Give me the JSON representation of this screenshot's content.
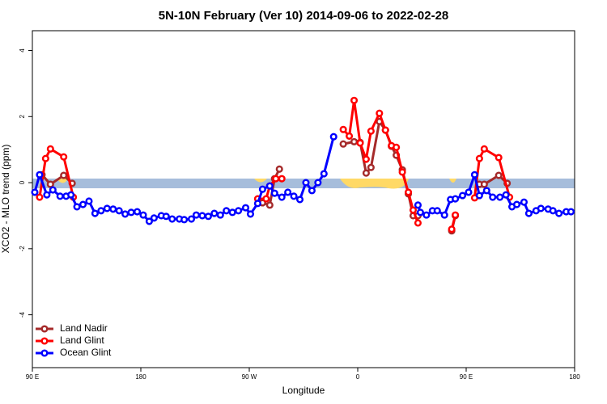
{
  "chart_data": {
    "type": "line",
    "title": "5N-10N February (Ver 10)   2014-09-06 to 2022-02-28",
    "x_label": "Longitude",
    "y_label": "XCO2 - MLO trend (ppm)",
    "xlim": [
      90,
      540
    ],
    "xticks": [
      {
        "value": 90,
        "label": "90 E"
      },
      {
        "value": 180,
        "label": "180"
      },
      {
        "value": 270,
        "label": "90 W"
      },
      {
        "value": 360,
        "label": "0"
      },
      {
        "value": 450,
        "label": "90 E"
      },
      {
        "value": 540,
        "label": "180"
      }
    ],
    "ylim": [
      -5.6,
      4.6
    ],
    "yticks": [
      -4,
      -2,
      0,
      2,
      4
    ],
    "legend": "bottom-left",
    "series": [
      {
        "name": "Land Nadir",
        "color": "#a52a2a",
        "x": [
          98,
          105,
          116,
          123,
          null,
          281,
          287,
          291,
          295,
          null,
          348,
          357,
          362,
          367,
          371,
          378,
          383,
          388,
          392,
          397,
          402,
          406,
          410,
          null,
          438,
          441,
          null,
          461,
          465,
          477,
          484
        ],
        "values": [
          0.24,
          -0.05,
          0.22,
          -0.02,
          null,
          -0.61,
          -0.68,
          0.12,
          0.41,
          null,
          1.17,
          1.24,
          1.22,
          0.29,
          0.46,
          1.85,
          1.59,
          1.1,
          0.83,
          0.39,
          -0.34,
          -1.0,
          -1.0,
          null,
          -1.46,
          -1.0,
          null,
          -0.05,
          -0.05,
          0.22,
          -0.02
        ]
      },
      {
        "name": "Land Glint",
        "color": "#ff0000",
        "x": [
          96,
          101,
          105,
          116,
          124,
          null,
          277,
          284,
          287,
          292,
          297,
          null,
          348,
          353,
          357,
          362,
          367,
          371,
          378,
          383,
          388,
          392,
          397,
          402,
          406,
          410,
          null,
          438,
          441,
          null,
          457,
          461,
          465,
          477,
          486
        ],
        "values": [
          -0.44,
          0.73,
          1.02,
          0.78,
          -0.44,
          null,
          -0.49,
          -0.49,
          -0.1,
          0.12,
          0.12,
          null,
          1.61,
          1.41,
          2.49,
          1.2,
          0.71,
          1.56,
          2.1,
          1.59,
          1.12,
          1.07,
          0.32,
          -0.29,
          -0.83,
          -1.22,
          null,
          -1.41,
          -0.98,
          null,
          -0.46,
          0.73,
          1.02,
          0.76,
          -0.44
        ]
      },
      {
        "name": "Ocean Glint",
        "color": "#0000ff",
        "x": [
          92,
          96,
          102,
          107,
          113,
          118,
          122,
          127,
          132,
          137,
          142,
          147,
          152,
          157,
          162,
          167,
          172,
          177,
          182,
          187,
          191,
          197,
          201,
          206,
          212,
          216,
          222,
          226,
          231,
          236,
          241,
          246,
          251,
          256,
          261,
          267,
          271,
          277,
          281,
          287,
          291,
          297,
          302,
          307,
          312,
          317,
          322,
          327,
          332,
          340,
          null,
          410,
          412,
          417,
          422,
          426,
          432,
          437,
          441,
          447,
          452,
          457,
          461,
          467,
          472,
          478,
          483,
          488,
          492,
          498,
          502,
          508,
          512,
          518,
          522,
          527,
          533,
          537
        ],
        "values": [
          -0.29,
          0.24,
          -0.37,
          -0.22,
          -0.41,
          -0.41,
          -0.37,
          -0.73,
          -0.66,
          -0.56,
          -0.93,
          -0.85,
          -0.78,
          -0.8,
          -0.85,
          -0.95,
          -0.9,
          -0.88,
          -0.98,
          -1.17,
          -1.07,
          -1.0,
          -1.02,
          -1.1,
          -1.1,
          -1.12,
          -1.1,
          -0.98,
          -1.0,
          -1.02,
          -0.93,
          -0.98,
          -0.85,
          -0.9,
          -0.85,
          -0.76,
          -0.95,
          -0.63,
          -0.2,
          -0.1,
          -0.32,
          -0.44,
          -0.29,
          -0.41,
          -0.51,
          0.0,
          -0.24,
          0.0,
          0.27,
          1.39,
          null,
          -0.68,
          -0.9,
          -0.98,
          -0.85,
          -0.85,
          -0.98,
          -0.51,
          -0.49,
          -0.39,
          -0.29,
          0.24,
          -0.39,
          -0.24,
          -0.44,
          -0.44,
          -0.37,
          -0.73,
          -0.66,
          -0.59,
          -0.93,
          -0.85,
          -0.78,
          -0.8,
          -0.85,
          -0.93,
          -0.88,
          -0.88
        ]
      }
    ]
  }
}
